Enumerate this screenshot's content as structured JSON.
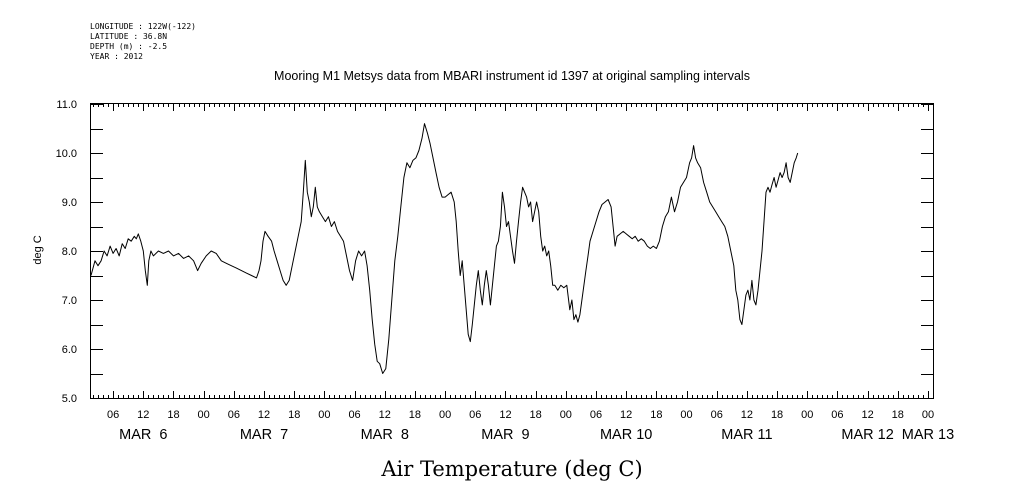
{
  "metadata": {
    "longitude": "LONGITUDE : 122W(-122)",
    "latitude": "LATITUDE : 36.8N",
    "depth": "DEPTH (m) : -2.5",
    "year": "YEAR : 2012"
  },
  "chart_data": {
    "type": "line",
    "title": "Mooring M1 Metsys data from MBARI instrument id 1397 at original sampling intervals",
    "xlabel": "Air Temperature (deg C)",
    "ylabel": "deg C",
    "ylim": [
      5.0,
      11.0
    ],
    "y_ticks": [
      "5.0",
      "6.0",
      "7.0",
      "8.0",
      "9.0",
      "10.0",
      "11.0"
    ],
    "x_unit": "hours since MAR 6 00",
    "xlim": [
      1.6,
      169.0
    ],
    "hour_ticks": [
      {
        "h": 6,
        "label": "06"
      },
      {
        "h": 12,
        "label": "12"
      },
      {
        "h": 18,
        "label": "18"
      },
      {
        "h": 24,
        "label": "00"
      },
      {
        "h": 30,
        "label": "06"
      },
      {
        "h": 36,
        "label": "12"
      },
      {
        "h": 42,
        "label": "18"
      },
      {
        "h": 48,
        "label": "00"
      },
      {
        "h": 54,
        "label": "06"
      },
      {
        "h": 60,
        "label": "12"
      },
      {
        "h": 66,
        "label": "18"
      },
      {
        "h": 72,
        "label": "00"
      },
      {
        "h": 78,
        "label": "06"
      },
      {
        "h": 84,
        "label": "12"
      },
      {
        "h": 90,
        "label": "18"
      },
      {
        "h": 96,
        "label": "00"
      },
      {
        "h": 102,
        "label": "06"
      },
      {
        "h": 108,
        "label": "12"
      },
      {
        "h": 114,
        "label": "18"
      },
      {
        "h": 120,
        "label": "00"
      },
      {
        "h": 126,
        "label": "06"
      },
      {
        "h": 132,
        "label": "12"
      },
      {
        "h": 138,
        "label": "18"
      },
      {
        "h": 144,
        "label": "00"
      },
      {
        "h": 150,
        "label": "06"
      },
      {
        "h": 156,
        "label": "12"
      },
      {
        "h": 162,
        "label": "18"
      },
      {
        "h": 168,
        "label": "00"
      }
    ],
    "date_labels": [
      {
        "h": 12,
        "label": "MAR  6"
      },
      {
        "h": 36,
        "label": "MAR  7"
      },
      {
        "h": 60,
        "label": "MAR  8"
      },
      {
        "h": 84,
        "label": "MAR  9"
      },
      {
        "h": 108,
        "label": "MAR 10"
      },
      {
        "h": 132,
        "label": "MAR 11"
      },
      {
        "h": 156,
        "label": "MAR 12"
      },
      {
        "h": 168,
        "label": "MAR 13"
      }
    ],
    "series": [
      {
        "values": [
          [
            1.6,
            7.5
          ],
          [
            2.4,
            7.8
          ],
          [
            3.0,
            7.7
          ],
          [
            3.6,
            7.8
          ],
          [
            4.2,
            8.0
          ],
          [
            4.8,
            7.9
          ],
          [
            5.4,
            8.1
          ],
          [
            6.0,
            7.95
          ],
          [
            6.6,
            8.05
          ],
          [
            7.2,
            7.9
          ],
          [
            7.8,
            8.15
          ],
          [
            8.4,
            8.05
          ],
          [
            9.0,
            8.25
          ],
          [
            9.6,
            8.2
          ],
          [
            10.2,
            8.3
          ],
          [
            10.6,
            8.25
          ],
          [
            11.0,
            8.35
          ],
          [
            11.5,
            8.2
          ],
          [
            12.0,
            8.0
          ],
          [
            12.4,
            7.6
          ],
          [
            12.8,
            7.3
          ],
          [
            13.1,
            7.8
          ],
          [
            13.5,
            8.0
          ],
          [
            14.0,
            7.9
          ],
          [
            15.0,
            8.0
          ],
          [
            16.0,
            7.95
          ],
          [
            17.0,
            8.0
          ],
          [
            18.0,
            7.9
          ],
          [
            19.0,
            7.95
          ],
          [
            20.0,
            7.85
          ],
          [
            21.0,
            7.9
          ],
          [
            22.0,
            7.8
          ],
          [
            22.8,
            7.6
          ],
          [
            23.5,
            7.75
          ],
          [
            24.5,
            7.9
          ],
          [
            25.5,
            8.0
          ],
          [
            26.5,
            7.95
          ],
          [
            27.5,
            7.8
          ],
          [
            28.5,
            7.75
          ],
          [
            29.5,
            7.7
          ],
          [
            30.5,
            7.65
          ],
          [
            31.5,
            7.6
          ],
          [
            32.5,
            7.55
          ],
          [
            33.5,
            7.5
          ],
          [
            34.5,
            7.45
          ],
          [
            35.0,
            7.6
          ],
          [
            35.4,
            7.8
          ],
          [
            35.8,
            8.2
          ],
          [
            36.2,
            8.4
          ],
          [
            36.8,
            8.3
          ],
          [
            37.5,
            8.2
          ],
          [
            38.0,
            8.0
          ],
          [
            38.6,
            7.8
          ],
          [
            39.2,
            7.6
          ],
          [
            39.8,
            7.4
          ],
          [
            40.4,
            7.3
          ],
          [
            41.0,
            7.4
          ],
          [
            41.6,
            7.7
          ],
          [
            42.2,
            8.0
          ],
          [
            42.8,
            8.3
          ],
          [
            43.4,
            8.6
          ],
          [
            43.8,
            9.2
          ],
          [
            44.2,
            9.85
          ],
          [
            44.6,
            9.2
          ],
          [
            45.0,
            9.0
          ],
          [
            45.4,
            8.7
          ],
          [
            45.8,
            8.9
          ],
          [
            46.2,
            9.3
          ],
          [
            46.6,
            8.9
          ],
          [
            47.0,
            8.8
          ],
          [
            47.6,
            8.7
          ],
          [
            48.2,
            8.6
          ],
          [
            48.8,
            8.7
          ],
          [
            49.4,
            8.5
          ],
          [
            50.0,
            8.6
          ],
          [
            50.6,
            8.4
          ],
          [
            51.2,
            8.3
          ],
          [
            51.8,
            8.2
          ],
          [
            52.4,
            7.9
          ],
          [
            53.0,
            7.6
          ],
          [
            53.6,
            7.4
          ],
          [
            54.2,
            7.8
          ],
          [
            54.8,
            8.0
          ],
          [
            55.4,
            7.9
          ],
          [
            56.0,
            8.0
          ],
          [
            56.5,
            7.7
          ],
          [
            57.0,
            7.2
          ],
          [
            57.5,
            6.6
          ],
          [
            58.0,
            6.1
          ],
          [
            58.5,
            5.75
          ],
          [
            59.0,
            5.7
          ],
          [
            59.6,
            5.5
          ],
          [
            60.2,
            5.6
          ],
          [
            60.8,
            6.2
          ],
          [
            61.4,
            7.0
          ],
          [
            62.0,
            7.8
          ],
          [
            62.6,
            8.3
          ],
          [
            63.2,
            8.9
          ],
          [
            63.8,
            9.5
          ],
          [
            64.4,
            9.8
          ],
          [
            65.0,
            9.7
          ],
          [
            65.6,
            9.85
          ],
          [
            66.2,
            9.9
          ],
          [
            66.8,
            10.05
          ],
          [
            67.4,
            10.3
          ],
          [
            67.9,
            10.6
          ],
          [
            68.5,
            10.4
          ],
          [
            69.0,
            10.2
          ],
          [
            69.6,
            9.9
          ],
          [
            70.2,
            9.6
          ],
          [
            70.8,
            9.3
          ],
          [
            71.4,
            9.1
          ],
          [
            72.0,
            9.1
          ],
          [
            72.6,
            9.15
          ],
          [
            73.2,
            9.2
          ],
          [
            73.8,
            9.0
          ],
          [
            74.2,
            8.6
          ],
          [
            74.6,
            8.0
          ],
          [
            75.0,
            7.5
          ],
          [
            75.4,
            7.8
          ],
          [
            75.8,
            7.3
          ],
          [
            76.2,
            6.8
          ],
          [
            76.6,
            6.3
          ],
          [
            77.0,
            6.15
          ],
          [
            77.4,
            6.5
          ],
          [
            77.8,
            6.9
          ],
          [
            78.2,
            7.3
          ],
          [
            78.6,
            7.6
          ],
          [
            79.0,
            7.2
          ],
          [
            79.4,
            6.9
          ],
          [
            79.8,
            7.3
          ],
          [
            80.2,
            7.6
          ],
          [
            80.6,
            7.3
          ],
          [
            81.0,
            6.9
          ],
          [
            81.4,
            7.3
          ],
          [
            81.8,
            7.7
          ],
          [
            82.2,
            8.1
          ],
          [
            82.6,
            8.2
          ],
          [
            83.0,
            8.5
          ],
          [
            83.4,
            9.2
          ],
          [
            83.8,
            8.9
          ],
          [
            84.2,
            8.5
          ],
          [
            84.6,
            8.6
          ],
          [
            85.0,
            8.3
          ],
          [
            85.4,
            8.0
          ],
          [
            85.8,
            7.75
          ],
          [
            86.2,
            8.2
          ],
          [
            86.6,
            8.6
          ],
          [
            87.0,
            9.0
          ],
          [
            87.4,
            9.3
          ],
          [
            87.8,
            9.2
          ],
          [
            88.2,
            9.1
          ],
          [
            88.6,
            8.9
          ],
          [
            89.0,
            9.0
          ],
          [
            89.4,
            8.6
          ],
          [
            89.8,
            8.8
          ],
          [
            90.2,
            9.0
          ],
          [
            90.6,
            8.8
          ],
          [
            91.0,
            8.3
          ],
          [
            91.4,
            8.0
          ],
          [
            91.8,
            8.1
          ],
          [
            92.2,
            7.9
          ],
          [
            92.6,
            8.0
          ],
          [
            93.0,
            7.7
          ],
          [
            93.4,
            7.3
          ],
          [
            93.8,
            7.3
          ],
          [
            94.4,
            7.2
          ],
          [
            95.0,
            7.3
          ],
          [
            95.6,
            7.25
          ],
          [
            96.2,
            7.3
          ],
          [
            96.8,
            6.8
          ],
          [
            97.2,
            7.0
          ],
          [
            97.6,
            6.6
          ],
          [
            98.0,
            6.7
          ],
          [
            98.4,
            6.55
          ],
          [
            98.8,
            6.7
          ],
          [
            99.2,
            7.0
          ],
          [
            99.6,
            7.3
          ],
          [
            100.0,
            7.6
          ],
          [
            100.4,
            7.9
          ],
          [
            100.8,
            8.2
          ],
          [
            101.4,
            8.4
          ],
          [
            102.0,
            8.6
          ],
          [
            102.6,
            8.8
          ],
          [
            103.2,
            8.95
          ],
          [
            103.8,
            9.0
          ],
          [
            104.4,
            9.05
          ],
          [
            105.0,
            8.9
          ],
          [
            105.4,
            8.5
          ],
          [
            105.8,
            8.1
          ],
          [
            106.2,
            8.3
          ],
          [
            106.8,
            8.35
          ],
          [
            107.4,
            8.4
          ],
          [
            108.0,
            8.35
          ],
          [
            108.6,
            8.3
          ],
          [
            109.2,
            8.25
          ],
          [
            109.8,
            8.3
          ],
          [
            110.4,
            8.2
          ],
          [
            111.0,
            8.25
          ],
          [
            111.6,
            8.2
          ],
          [
            112.2,
            8.1
          ],
          [
            112.8,
            8.05
          ],
          [
            113.4,
            8.1
          ],
          [
            114.0,
            8.05
          ],
          [
            114.6,
            8.2
          ],
          [
            115.2,
            8.5
          ],
          [
            115.8,
            8.7
          ],
          [
            116.4,
            8.8
          ],
          [
            117.0,
            9.1
          ],
          [
            117.6,
            8.8
          ],
          [
            118.2,
            9.0
          ],
          [
            118.8,
            9.3
          ],
          [
            119.4,
            9.4
          ],
          [
            120.0,
            9.5
          ],
          [
            120.6,
            9.8
          ],
          [
            121.0,
            9.9
          ],
          [
            121.4,
            10.15
          ],
          [
            121.8,
            9.9
          ],
          [
            122.2,
            9.8
          ],
          [
            122.8,
            9.7
          ],
          [
            123.4,
            9.4
          ],
          [
            124.0,
            9.2
          ],
          [
            124.6,
            9.0
          ],
          [
            125.2,
            8.9
          ],
          [
            125.8,
            8.8
          ],
          [
            126.4,
            8.7
          ],
          [
            127.0,
            8.6
          ],
          [
            127.6,
            8.5
          ],
          [
            128.2,
            8.3
          ],
          [
            128.6,
            8.1
          ],
          [
            129.0,
            7.9
          ],
          [
            129.4,
            7.7
          ],
          [
            129.8,
            7.2
          ],
          [
            130.2,
            7.0
          ],
          [
            130.6,
            6.6
          ],
          [
            131.0,
            6.5
          ],
          [
            131.4,
            6.8
          ],
          [
            131.8,
            7.1
          ],
          [
            132.2,
            7.2
          ],
          [
            132.6,
            7.0
          ],
          [
            133.0,
            7.4
          ],
          [
            133.4,
            7.0
          ],
          [
            133.8,
            6.9
          ],
          [
            134.2,
            7.2
          ],
          [
            134.6,
            7.6
          ],
          [
            135.0,
            8.0
          ],
          [
            135.4,
            8.6
          ],
          [
            135.8,
            9.2
          ],
          [
            136.2,
            9.3
          ],
          [
            136.6,
            9.2
          ],
          [
            137.0,
            9.35
          ],
          [
            137.4,
            9.5
          ],
          [
            137.8,
            9.3
          ],
          [
            138.2,
            9.45
          ],
          [
            138.6,
            9.6
          ],
          [
            139.0,
            9.5
          ],
          [
            139.4,
            9.6
          ],
          [
            139.8,
            9.8
          ],
          [
            140.2,
            9.5
          ],
          [
            140.6,
            9.4
          ],
          [
            141.0,
            9.6
          ],
          [
            141.4,
            9.8
          ],
          [
            141.8,
            9.9
          ],
          [
            142.1,
            10.0
          ]
        ]
      }
    ]
  }
}
